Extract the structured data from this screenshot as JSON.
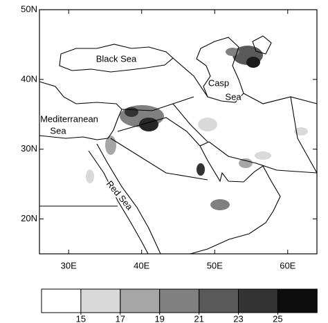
{
  "map": {
    "xlim": [
      26,
      64
    ],
    "ylim": [
      15,
      50
    ],
    "xticks": [
      {
        "value": 30,
        "label": "30E"
      },
      {
        "value": 40,
        "label": "40E"
      },
      {
        "value": 50,
        "label": "50E"
      },
      {
        "value": 60,
        "label": "60E"
      }
    ],
    "yticks": [
      {
        "value": 20,
        "label": "20N"
      },
      {
        "value": 30,
        "label": "30N"
      },
      {
        "value": 40,
        "label": "40N"
      },
      {
        "value": 50,
        "label": "50N"
      }
    ],
    "labels": [
      "Black Sea",
      "Casp",
      "Sea",
      "Mediterranean",
      "Sea",
      "Red Sea"
    ]
  },
  "colorbar": {
    "colors": [
      "#ffffff",
      "#d9d9d9",
      "#a6a6a6",
      "#808080",
      "#595959",
      "#333333",
      "#0d0d0d"
    ],
    "levels": [
      15,
      17,
      19,
      21,
      23,
      25
    ]
  }
}
